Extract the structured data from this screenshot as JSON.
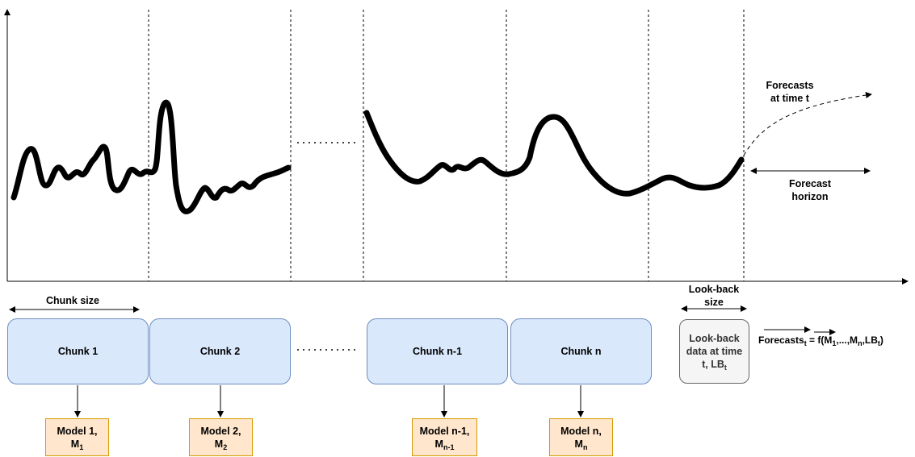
{
  "diagram": {
    "forecasts_label_line1": "Forecasts",
    "forecasts_label_line2": "at time t",
    "forecast_horizon_line1": "Forecast",
    "forecast_horizon_line2": "horizon",
    "chunk_size_label": "Chunk size",
    "lookback_size_line1": "Look-back",
    "lookback_size_line2": "size",
    "gap_dots": "..........",
    "chunks": [
      {
        "label": "Chunk 1"
      },
      {
        "label": "Chunk 2"
      },
      {
        "label": "Chunk n-1"
      },
      {
        "label": "Chunk n"
      }
    ],
    "models": [
      {
        "line1": "Model 1,",
        "base": "M",
        "sub": "1"
      },
      {
        "line1": "Model 2,",
        "base": "M",
        "sub": "2"
      },
      {
        "line1": "Model n-1,",
        "base": "M",
        "sub": "n-1"
      },
      {
        "line1": "Model n,",
        "base": "M",
        "sub": "n"
      }
    ],
    "lookback_data": {
      "line1": "Look-back",
      "line2": "data at time",
      "line3_prefix": "t, LB",
      "line3_sub": "t"
    },
    "formula": {
      "prefix": "Forecasts",
      "prefix_sub": "t",
      "mid1": " = f(M",
      "sub1": "1",
      "mid2": ",...,M",
      "sub2": "n",
      "mid3": ",LB",
      "sub3": "t",
      "end": ")"
    }
  },
  "colors": {
    "chunk_fill": "#dae8fc",
    "chunk_stroke": "#6c8ebf",
    "model_fill": "#ffe6cc",
    "model_stroke": "#d79b00",
    "lookback_fill": "#f5f5f5",
    "lookback_stroke": "#666666"
  }
}
